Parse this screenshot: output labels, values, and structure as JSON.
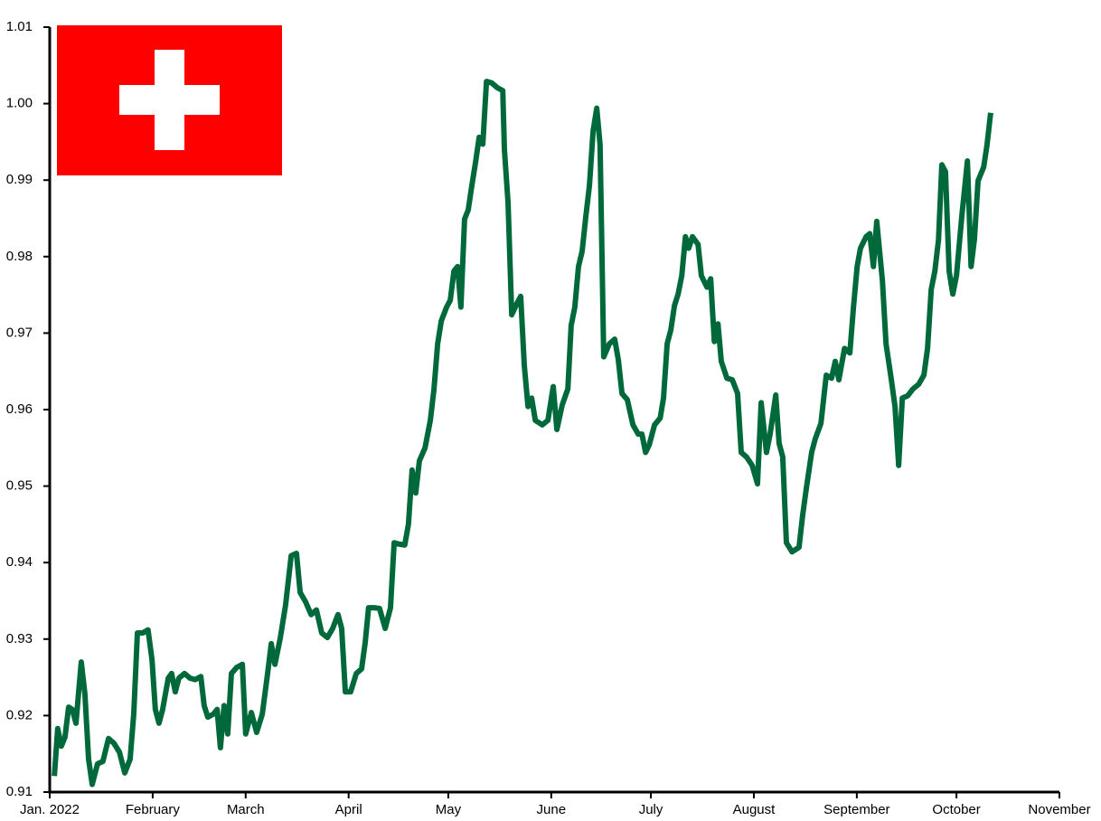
{
  "chart_data": {
    "type": "line",
    "x": [
      1.4,
      2.4,
      3.5,
      4.6,
      5.7,
      6.8,
      7.9,
      9.5,
      10.6,
      11.7,
      12.8,
      14.4,
      16,
      17.7,
      19.3,
      21,
      22.6,
      24.2,
      25.3,
      26.4,
      28,
      29.6,
      30.8,
      31.8,
      32.9,
      34,
      35.7,
      36.7,
      37.8,
      38.9,
      40.6,
      42.2,
      43.8,
      45.5,
      46.5,
      47.6,
      49.3,
      50.4,
      51.4,
      52.5,
      53.6,
      54.7,
      56.3,
      58,
      59,
      60.7,
      62.3,
      64,
      65.6,
      66.7,
      67.8,
      69.4,
      71,
      72.7,
      74.3,
      75.4,
      77,
      78.7,
      80.3,
      81.9,
      83.6,
      85.2,
      86.8,
      87.9,
      89,
      90.6,
      92.3,
      93.9,
      95,
      96,
      97.7,
      99.3,
      101,
      102.6,
      103.7,
      105.3,
      106.9,
      108,
      109.1,
      110.2,
      111.3,
      113,
      114.6,
      115.7,
      116.8,
      117.9,
      119.5,
      120.6,
      121.7,
      122.8,
      123.8,
      124.9,
      126,
      127.1,
      128.2,
      129.3,
      130.4,
      131.5,
      133.1,
      134.7,
      136.4,
      136.9,
      138,
      139.1,
      140.7,
      141.8,
      142.9,
      144,
      145.1,
      146.2,
      148.3,
      150,
      151.6,
      152.7,
      154.3,
      156,
      157,
      158.1,
      159.2,
      160.3,
      161.4,
      162.5,
      163.6,
      164.7,
      165.7,
      166.8,
      168.5,
      170.1,
      171.2,
      172.3,
      173.9,
      175.6,
      177.2,
      178.3,
      179.4,
      180.5,
      182.1,
      183.8,
      184.8,
      185.9,
      187,
      188.1,
      189.2,
      190.3,
      191.4,
      192.4,
      193.5,
      195.2,
      196.2,
      197.9,
      199,
      200.1,
      201.2,
      202.2,
      203.9,
      205.5,
      207.1,
      208.2,
      209.8,
      211.5,
      213.1,
      214.2,
      215.8,
      216.9,
      218.6,
      219.6,
      220.7,
      221.8,
      223.5,
      225.6,
      226.7,
      227.8,
      229.4,
      230.5,
      232.2,
      233.8,
      235.4,
      236.5,
      237.6,
      239.3,
      240.9,
      242,
      243.1,
      244.1,
      245.8,
      246.9,
      248,
      249,
      250.7,
      251.8,
      253.4,
      254.5,
      255.6,
      256.7,
      258.3,
      259.9,
      261.6,
      263.2,
      264.3,
      265.4,
      266.5,
      267.6,
      268.6,
      269.7,
      270.8,
      271.9,
      273,
      274.6,
      276.3,
      277.4,
      278.4,
      279.5,
      281.2,
      282.2,
      283.3
    ],
    "series": [
      {
        "color": "#00693c",
        "values": [
          0.9121,
          0.9183,
          0.916,
          0.9172,
          0.9211,
          0.9208,
          0.919,
          0.927,
          0.9228,
          0.9143,
          0.911,
          0.9137,
          0.914,
          0.917,
          0.9164,
          0.9152,
          0.9125,
          0.9143,
          0.9202,
          0.9308,
          0.9308,
          0.9312,
          0.9273,
          0.9208,
          0.919,
          0.9208,
          0.9249,
          0.9255,
          0.9231,
          0.9249,
          0.9255,
          0.9249,
          0.9247,
          0.9251,
          0.9213,
          0.9198,
          0.9202,
          0.9208,
          0.9158,
          0.9213,
          0.9176,
          0.9255,
          0.9263,
          0.9267,
          0.9176,
          0.9204,
          0.9178,
          0.9202,
          0.9255,
          0.9294,
          0.9267,
          0.9301,
          0.9344,
          0.9409,
          0.9412,
          0.9361,
          0.9349,
          0.9332,
          0.9338,
          0.9308,
          0.9302,
          0.9314,
          0.9332,
          0.9314,
          0.9231,
          0.9231,
          0.9255,
          0.9261,
          0.9296,
          0.9341,
          0.9341,
          0.934,
          0.9314,
          0.9341,
          0.9426,
          0.9424,
          0.9423,
          0.945,
          0.9521,
          0.9491,
          0.9533,
          0.955,
          0.9586,
          0.9627,
          0.9686,
          0.9716,
          0.9734,
          0.9743,
          0.9781,
          0.9787,
          0.9734,
          0.9849,
          0.9861,
          0.9893,
          0.9923,
          0.9956,
          0.9947,
          1.0029,
          1.0027,
          1.0021,
          1.0017,
          0.994,
          0.987,
          0.9724,
          0.9739,
          0.9748,
          0.9657,
          0.9604,
          0.9615,
          0.9586,
          0.958,
          0.9586,
          0.963,
          0.9574,
          0.9606,
          0.9627,
          0.971,
          0.9734,
          0.9787,
          0.9807,
          0.9852,
          0.9893,
          0.9964,
          0.9994,
          0.9946,
          0.9669,
          0.9686,
          0.9692,
          0.9665,
          0.9621,
          0.9613,
          0.958,
          0.9568,
          0.9568,
          0.9544,
          0.9554,
          0.958,
          0.9589,
          0.9615,
          0.9686,
          0.9704,
          0.9736,
          0.9751,
          0.9775,
          0.9826,
          0.9811,
          0.9826,
          0.9816,
          0.9775,
          0.976,
          0.9771,
          0.9689,
          0.9712,
          0.9663,
          0.9641,
          0.9639,
          0.9621,
          0.9544,
          0.9538,
          0.9527,
          0.9503,
          0.9609,
          0.9544,
          0.9568,
          0.9619,
          0.9556,
          0.9538,
          0.9426,
          0.9414,
          0.942,
          0.9462,
          0.9497,
          0.9544,
          0.9562,
          0.9582,
          0.9645,
          0.9641,
          0.9663,
          0.9639,
          0.968,
          0.9674,
          0.9734,
          0.9787,
          0.9811,
          0.9826,
          0.983,
          0.9787,
          0.9846,
          0.9769,
          0.9686,
          0.9639,
          0.9604,
          0.9527,
          0.9615,
          0.9618,
          0.9627,
          0.9633,
          0.9645,
          0.968,
          0.9757,
          0.9781,
          0.9822,
          0.992,
          0.9911,
          0.9781,
          0.9751,
          0.9775,
          0.9852,
          0.9925,
          0.9787,
          0.9822,
          0.9899,
          0.9917,
          0.9946,
          0.9988
        ]
      }
    ],
    "xlim": [
      0,
      304
    ],
    "xticks": [
      {
        "value": 0,
        "label": "Jan. 2022"
      },
      {
        "value": 31,
        "label": "February"
      },
      {
        "value": 59,
        "label": "March"
      },
      {
        "value": 90,
        "label": "April"
      },
      {
        "value": 120,
        "label": "May"
      },
      {
        "value": 151,
        "label": "June"
      },
      {
        "value": 181,
        "label": "July"
      },
      {
        "value": 212,
        "label": "August"
      },
      {
        "value": 243,
        "label": "September"
      },
      {
        "value": 273,
        "label": "October"
      },
      {
        "value": 304,
        "label": "November"
      }
    ],
    "ylim": [
      0.91,
      1.01
    ],
    "yticks": [
      0.91,
      0.92,
      0.93,
      0.94,
      0.95,
      0.96,
      0.97,
      0.98,
      0.99,
      {
        "value": 1,
        "label": "1.00"
      },
      1.01
    ]
  }
}
